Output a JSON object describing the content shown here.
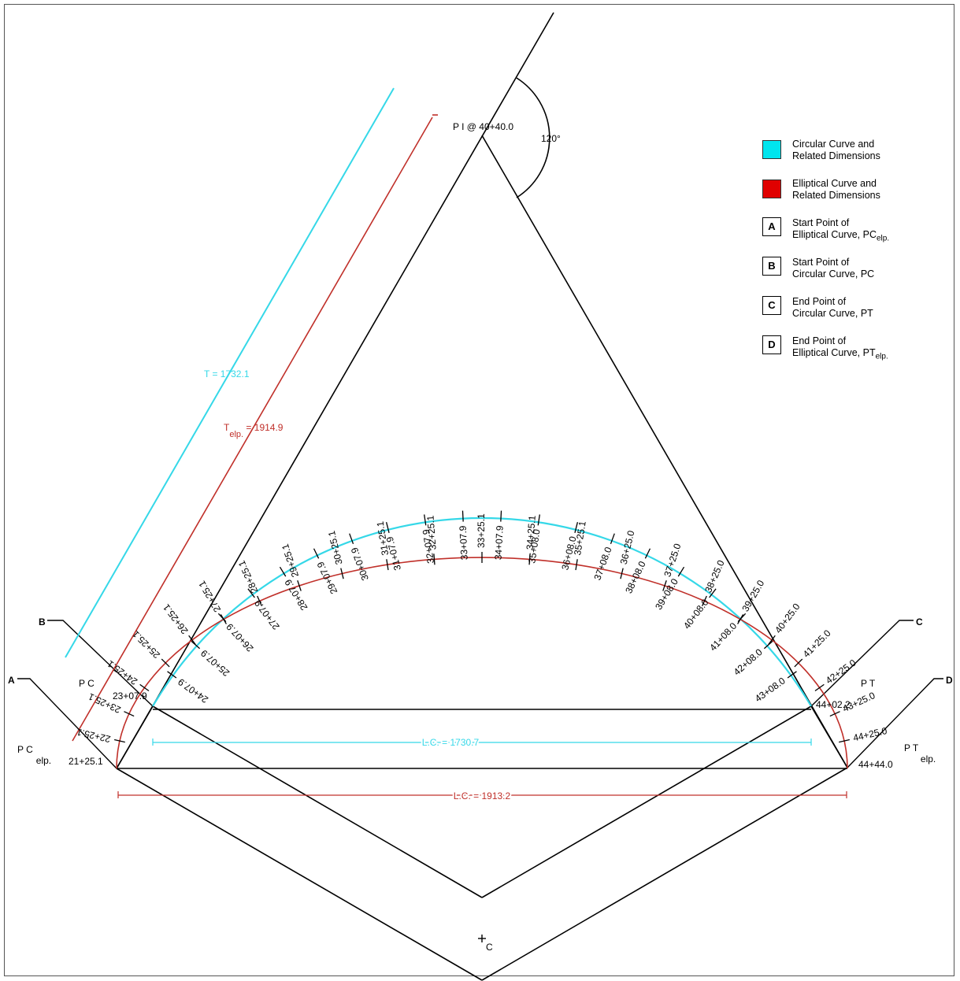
{
  "pi_label": "P I  @ 40+40.0",
  "angle_label": "120°",
  "tangent_circular": "T = 1732.1",
  "tangent_elliptical": {
    "main": "T",
    "sub": "elp.",
    "rest": " = 1914.9"
  },
  "long_chord_circular": "L.C. = 1730.7",
  "long_chord_elliptical": "L.C. = 1913.2",
  "point_labels": {
    "pc": "P C",
    "pt": "P T",
    "pc_elp_main": "P C",
    "pc_elp_sub": "elp.",
    "pt_elp_main": "P T",
    "pt_elp_sub": "elp.",
    "center_sub": "C"
  },
  "key_letters": [
    "A",
    "B",
    "C",
    "D"
  ],
  "endpoint_stations": {
    "pc_elp": "21+25.1",
    "pc": "23+07.9",
    "pt": "44+02.2",
    "pt_elp": "44+44.0"
  },
  "circular_stations": [
    "24+07.9",
    "25+07.9",
    "26+07.9",
    "27+07.9",
    "28+07.9",
    "29+07.9",
    "30+07.9",
    "31+07.9",
    "32+07.9",
    "33+07.9",
    "34+07.9",
    "35+08.0",
    "36+08.0",
    "37+08.0",
    "38+08.0",
    "39+08.0",
    "40+08.0",
    "41+08.0",
    "42+08.0",
    "43+08.0"
  ],
  "elliptical_stations": [
    "22+25.1",
    "23+25.1",
    "24+25.1",
    "25+25.1",
    "26+25.1",
    "27+25.1",
    "28+25.1",
    "29+25.1",
    "30+25.1",
    "31+25.1",
    "32+25.1",
    "33+25.1",
    "34+25.1",
    "35+25.1",
    "36+25.0",
    "37+25.0",
    "38+25.0",
    "39+25.0",
    "40+25.0",
    "41+25.0",
    "42+25.0",
    "43+25.0",
    "44+25.0"
  ],
  "legend": {
    "circular": {
      "line1": "Circular Curve and",
      "line2": "Related Dimensions",
      "color": "#00e5ee"
    },
    "elliptical": {
      "line1": "Elliptical Curve and",
      "line2": "Related Dimensions",
      "color": "#e00000"
    },
    "a": {
      "line1": "Start Point of",
      "line2": "Elliptical Curve, PC",
      "sub": "elp."
    },
    "b": {
      "line1": "Start Point of",
      "line2": "Circular Curve, PC"
    },
    "c": {
      "line1": "End Point of",
      "line2": "Circular Curve, PT"
    },
    "d": {
      "line1": "End Point of",
      "line2": "Elliptical Curve, PT",
      "sub": "elp."
    }
  },
  "colors": {
    "circular": "#35d8e8",
    "elliptical": "#c0302a",
    "line": "#000000"
  }
}
